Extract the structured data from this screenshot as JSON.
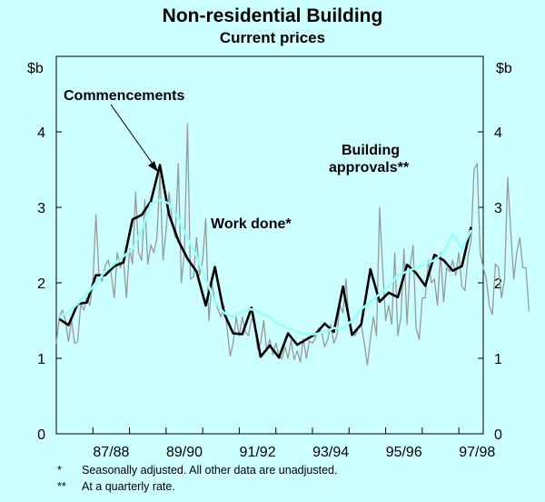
{
  "chart_data": {
    "type": "line",
    "title": "Non-residential Building",
    "subtitle": "Current prices",
    "ylabel_left": "$b",
    "ylabel_right": "$b",
    "ylim": [
      0,
      5
    ],
    "yticks": [
      0,
      1,
      2,
      3,
      4
    ],
    "x_tick_labels": [
      "87/88",
      "89/90",
      "91/92",
      "93/94",
      "95/96",
      "97/98"
    ],
    "x_start": "1986-07",
    "x_end": "1998-03",
    "grid": false,
    "annotations": [
      {
        "text": "Commencements"
      },
      {
        "text": "Work done*"
      },
      {
        "text": "Building",
        "text2": "approvals**"
      }
    ],
    "footnotes": [
      {
        "mark": "*",
        "text": "Seasonally adjusted. All other data are unadjusted."
      },
      {
        "mark": "**",
        "text": "At a quarterly rate."
      }
    ],
    "series": [
      {
        "name": "Building approvals**",
        "frequency": "monthly",
        "color": "#999999",
        "x_start": "1986-07",
        "values": [
          1.2,
          1.55,
          1.64,
          1.5,
          1.22,
          1.51,
          1.2,
          1.22,
          1.72,
          1.64,
          1.8,
          1.7,
          2.02,
          2.9,
          2.1,
          2.02,
          2.22,
          2.3,
          2.12,
          1.8,
          2.4,
          2.2,
          2.32,
          1.8,
          2.45,
          2.25,
          3.2,
          2.4,
          2.3,
          3.1,
          2.25,
          2.5,
          2.4,
          2.6,
          3.45,
          2.3,
          2.7,
          3.2,
          2.8,
          2.6,
          3.58,
          2.0,
          2.4,
          4.11,
          2.05,
          2.08,
          2.6,
          2.1,
          2.3,
          2.85,
          1.5,
          2.0,
          1.76,
          1.65,
          1.55,
          1.7,
          1.4,
          1.03,
          1.2,
          1.55,
          1.3,
          1.55,
          1.35,
          1.3,
          1.52,
          1.5,
          1.12,
          1.2,
          1.5,
          1.1,
          1.25,
          1.05,
          1.2,
          1.03,
          0.99,
          1.15,
          1.0,
          1.24,
          0.98,
          1.1,
          0.95,
          1.26,
          1.0,
          1.23,
          1.2,
          1.27,
          1.4,
          1.35,
          1.15,
          1.25,
          1.45,
          1.2,
          1.3,
          1.7,
          1.6,
          2.05,
          1.45,
          1.35,
          1.3,
          1.4,
          1.45,
          1.2,
          0.91,
          1.25,
          1.55,
          1.3,
          3.0,
          2.2,
          1.5,
          1.7,
          1.45,
          2.4,
          1.3,
          1.55,
          2.45,
          1.45,
          2.2,
          2.5,
          1.4,
          1.25,
          1.8,
          1.8,
          2.3,
          2.0,
          2.05,
          1.7,
          2.4,
          1.75,
          2.2,
          2.15,
          2.3,
          2.1,
          2.4,
          1.95,
          1.9,
          2.35,
          2.55,
          3.5,
          3.58,
          2.4,
          2.2,
          2.05,
          1.7,
          1.58,
          2.25,
          2.2,
          1.8,
          2.05,
          3.4,
          2.7,
          2.05,
          2.4,
          2.6,
          2.2,
          2.2,
          1.62
        ]
      },
      {
        "name": "Commencements",
        "frequency": "quarterly",
        "color": "#000000",
        "x_start": "1986-08",
        "values": [
          1.52,
          1.44,
          1.72,
          1.74,
          2.1,
          2.1,
          2.22,
          2.27,
          2.84,
          2.9,
          3.08,
          3.56,
          2.9,
          2.56,
          2.32,
          2.15,
          1.7,
          2.21,
          1.6,
          1.33,
          1.32,
          1.67,
          1.02,
          1.17,
          1.01,
          1.33,
          1.18,
          1.25,
          1.32,
          1.46,
          1.35,
          1.95,
          1.31,
          1.45,
          2.18,
          1.75,
          1.87,
          1.81,
          2.24,
          2.13,
          1.96,
          2.37,
          2.3,
          2.16,
          2.22,
          2.74
        ]
      },
      {
        "name": "Work done*",
        "frequency": "quarterly",
        "color": "#99ffff",
        "x_start": "1986-08",
        "values": [
          1.55,
          1.62,
          1.72,
          1.85,
          2.0,
          2.15,
          2.25,
          2.35,
          2.45,
          2.7,
          3.05,
          3.1,
          3.05,
          2.85,
          2.6,
          2.35,
          2.05,
          1.75,
          1.6,
          1.55,
          1.63,
          1.65,
          1.6,
          1.55,
          1.45,
          1.4,
          1.35,
          1.32,
          1.32,
          1.35,
          1.4,
          1.4,
          1.5,
          1.65,
          1.75,
          1.85,
          1.95,
          2.1,
          2.15,
          2.2,
          2.25,
          2.3,
          2.4,
          2.65,
          2.45,
          2.7
        ]
      }
    ]
  }
}
